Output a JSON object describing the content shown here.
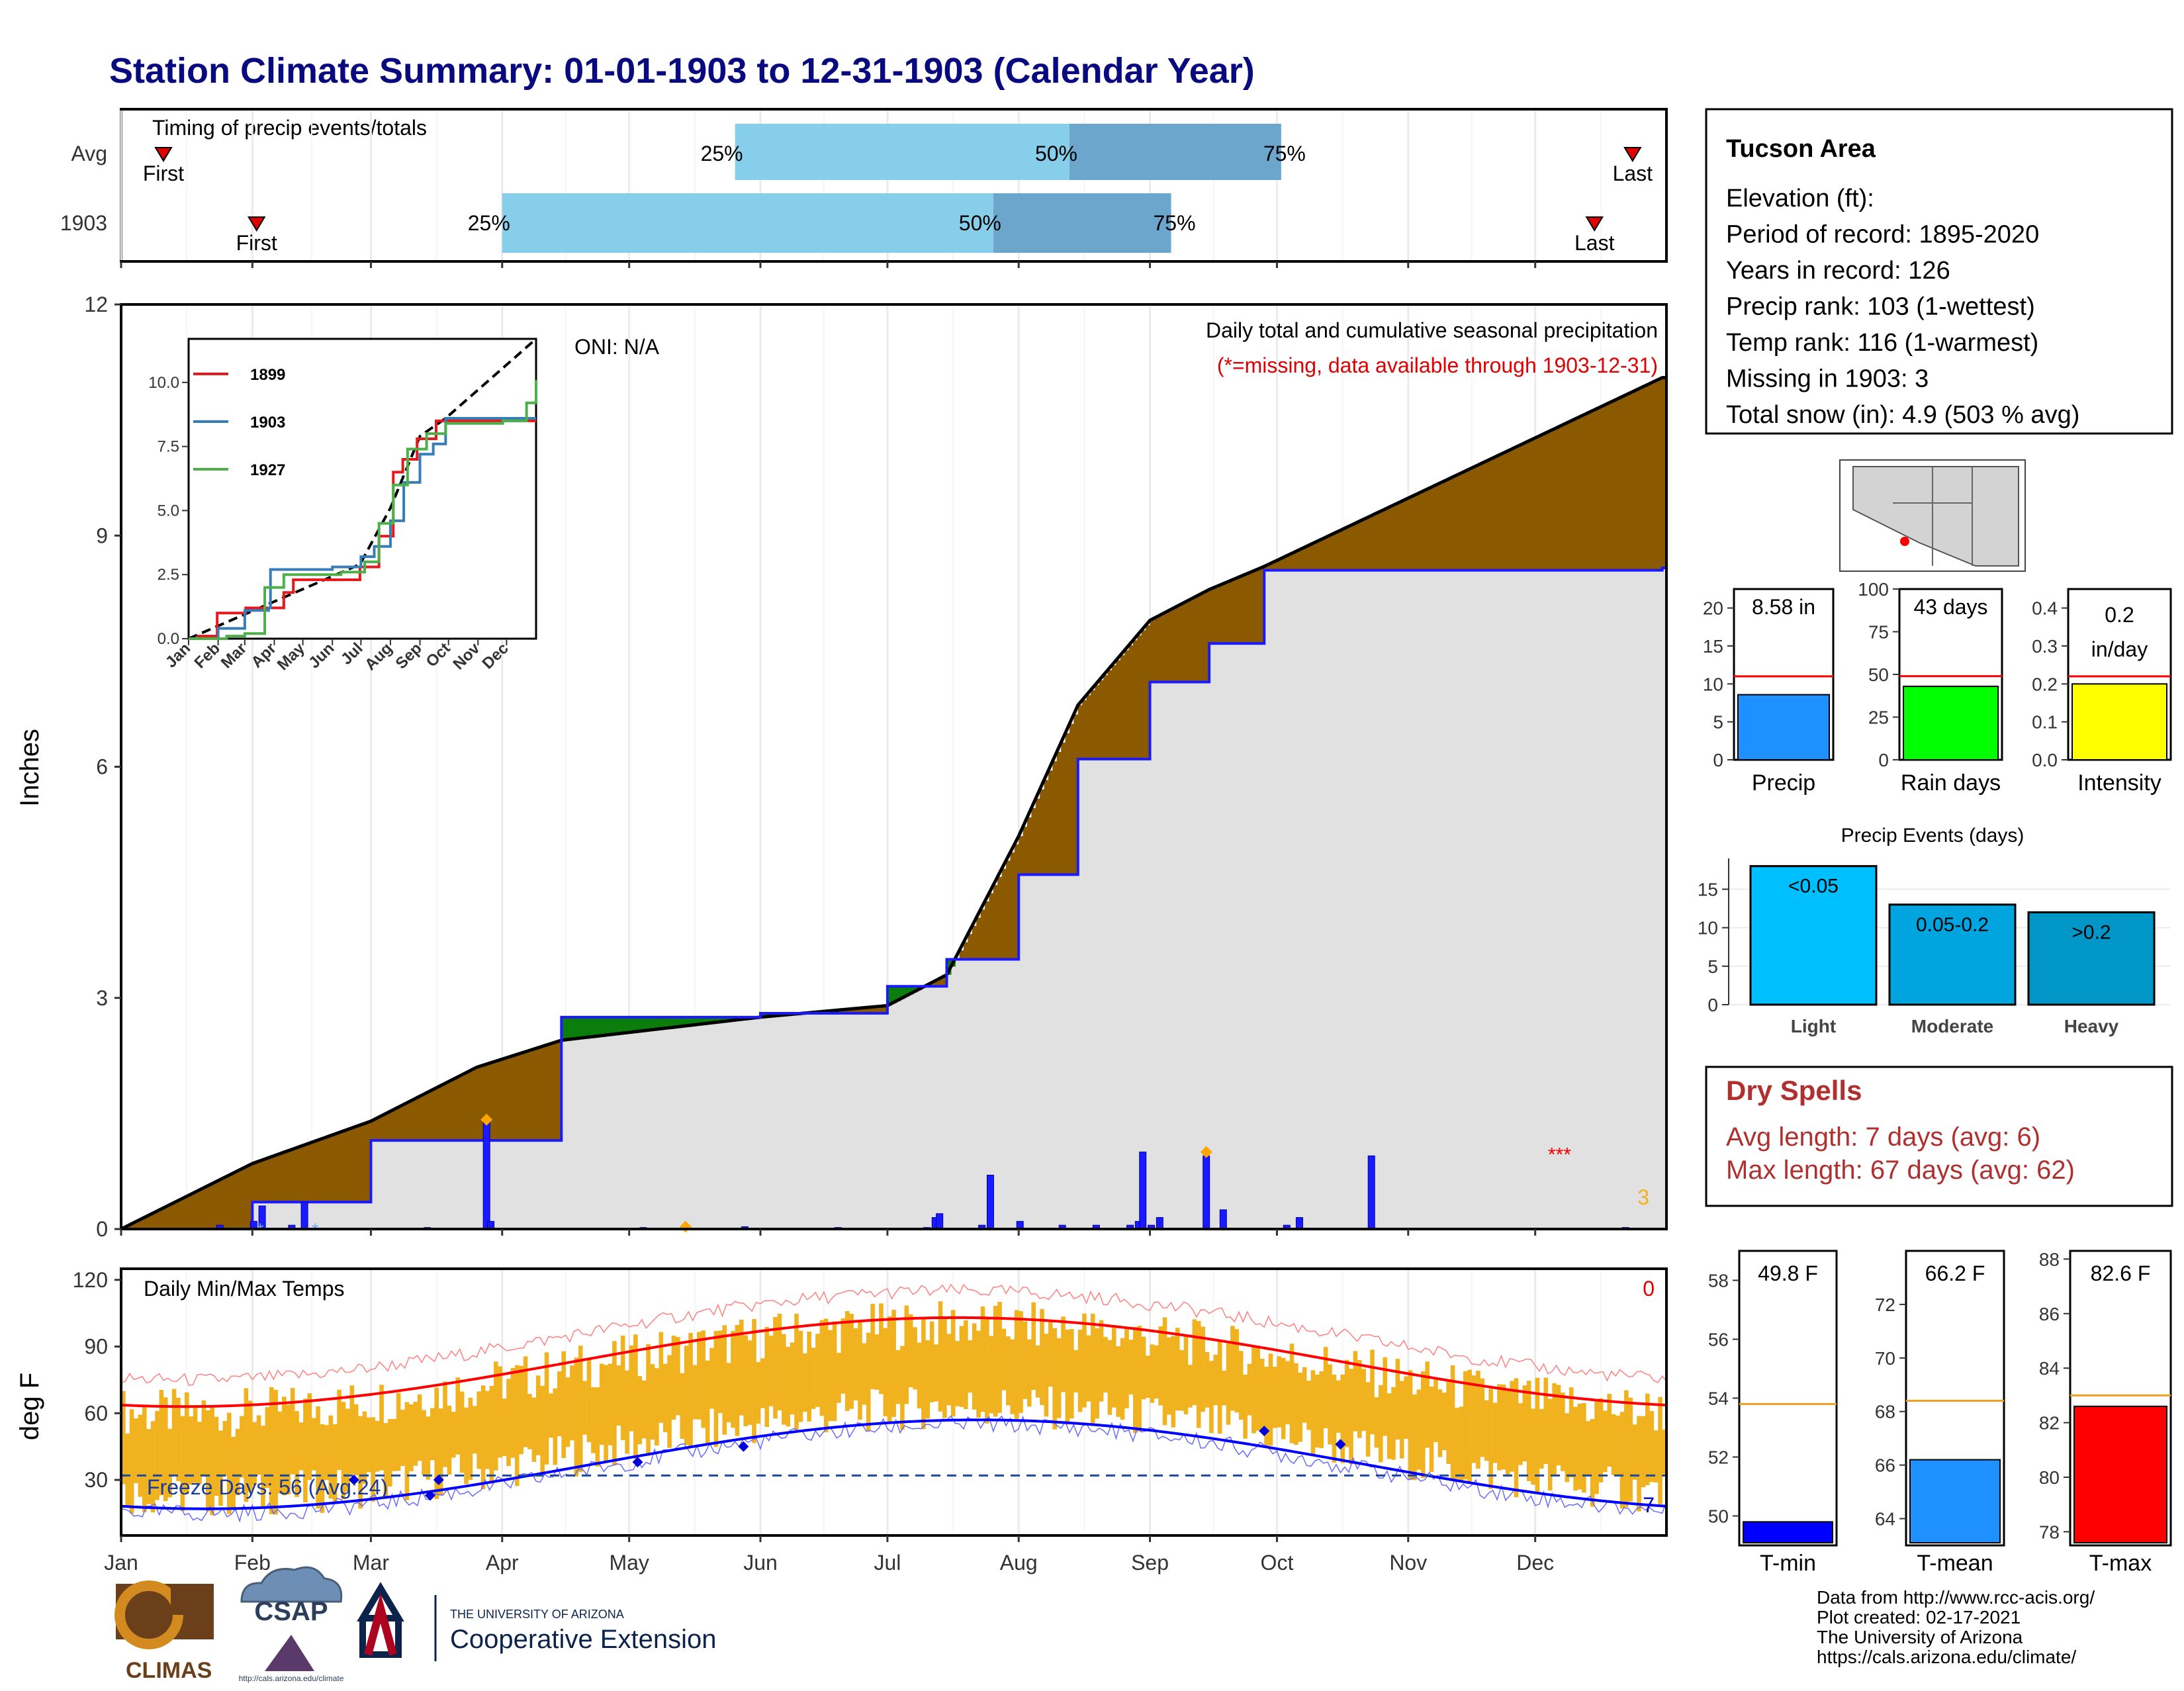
{
  "page_title": "Station Climate Summary: 01-01-1903 to 12-31-1903 (Calendar Year)",
  "months": [
    "Jan",
    "Feb",
    "Mar",
    "Apr",
    "May",
    "Jun",
    "Jul",
    "Aug",
    "Sep",
    "Oct",
    "Nov",
    "Dec"
  ],
  "colors": {
    "title": "#0a0a80",
    "brown": "#8b5a00",
    "green": "#0a7d0a",
    "blue": "#1a1aff",
    "gray_fill": "#e1e1e1",
    "orange": "#f0b21f",
    "red": "#e00000",
    "light_blue": "#87ceeb",
    "mid_blue": "#6ca6cd",
    "dry_red": "#b03030"
  },
  "timing_panel": {
    "title": "Timing of precip events/totals",
    "first_label": "First",
    "last_label": "Last",
    "rows": [
      {
        "label": "Avg",
        "first_doy": 10,
        "p25_doy": 145,
        "p50_doy": 224,
        "p75_doy": 274,
        "last_doy": 357,
        "p25_label": "25%",
        "p50_label": "50%",
        "p75_label": "75%"
      },
      {
        "label": "1903",
        "first_doy": 32,
        "p25_doy": 90,
        "p50_doy": 206,
        "p75_doy": 248,
        "last_doy": 348,
        "p25_label": "25%",
        "p50_label": "50%",
        "p75_label": "75%"
      }
    ]
  },
  "precip_panel": {
    "ylabel": "Inches",
    "header_line1": "Daily total and cumulative seasonal precipitation",
    "header_line2": "(*=missing, data available through 1903-12-31)",
    "oni": "ONI: N/A",
    "missing_count": "3",
    "y_ticks": [
      "0",
      "3",
      "6",
      "9",
      "12"
    ]
  },
  "inset_chart": {
    "y_ticks": [
      "0.0",
      "2.5",
      "5.0",
      "7.5",
      "10.0"
    ],
    "months": [
      "Jan",
      "Feb",
      "Mar",
      "Apr",
      "May",
      "Jun",
      "Jul",
      "Aug",
      "Sep",
      "Oct",
      "Nov",
      "Dec"
    ],
    "legend": [
      {
        "label": "1899",
        "color": "#e41a1c"
      },
      {
        "label": "1903",
        "color": "#377eb8"
      },
      {
        "label": "1927",
        "color": "#4daf4a"
      }
    ]
  },
  "temp_panel": {
    "title": "Daily Min/Max Temps",
    "ylabel": "deg F",
    "y_ticks": [
      "30",
      "60",
      "90",
      "120"
    ],
    "freeze_text": "Freeze Days: 56 (Avg:24)",
    "top_count": "0",
    "bottom_count": "7"
  },
  "station_info": {
    "name": "Tucson Area",
    "lines": [
      "Elevation (ft):",
      "Period of record: 1895-2020",
      "Years in record: 126",
      "Precip rank: 103 (1-wettest)",
      "Temp rank: 116 (1-warmest)",
      "Missing in 1903: 3",
      "Total snow (in): 4.9 (503 % avg)"
    ]
  },
  "mini_bars": [
    {
      "label": "Precip",
      "value_label": "8.58 in",
      "value": 8.58,
      "avg": 11.0,
      "ymax": 22.5,
      "ticks": [
        "0",
        "5",
        "10",
        "15",
        "20"
      ],
      "color": "#1e90ff"
    },
    {
      "label": "Rain days",
      "value_label": "43 days",
      "value": 43,
      "avg": 49,
      "ymax": 100,
      "ticks": [
        "0",
        "25",
        "50",
        "75",
        "100"
      ],
      "color": "#00ff00"
    },
    {
      "label": "Intensity",
      "value_label_1": "0.2",
      "value_label_2": "in/day",
      "value": 0.2,
      "avg": 0.22,
      "ymax": 0.45,
      "ticks": [
        "0.0",
        "0.1",
        "0.2",
        "0.3",
        "0.4"
      ],
      "color": "#ffff00"
    }
  ],
  "precip_events": {
    "title": "Precip Events (days)",
    "ticks": [
      "0",
      "5",
      "10",
      "15"
    ],
    "bars": [
      {
        "cat": "Light",
        "label": "<0.05",
        "value": 18,
        "color": "#00bfff"
      },
      {
        "cat": "Moderate",
        "label": "0.05-0.2",
        "value": 13,
        "color": "#00a5e0"
      },
      {
        "cat": "Heavy",
        "label": ">0.2",
        "value": 12,
        "color": "#0096c7"
      }
    ]
  },
  "dry_spells": {
    "title": "Dry Spells",
    "avg_line": "Avg length: 7 days (avg: 6)",
    "max_line": "Max length: 67 days (avg: 62)"
  },
  "temp_bars": [
    {
      "label": "T-min",
      "value_label": "49.8 F",
      "value": 49.8,
      "avg": 53.8,
      "ymin": 49,
      "ymax": 59,
      "ticks": [
        "50",
        "52",
        "54",
        "56",
        "58"
      ],
      "color": "#0000ff"
    },
    {
      "label": "T-mean",
      "value_label": "66.2 F",
      "value": 66.2,
      "avg": 68.4,
      "ymin": 63,
      "ymax": 74,
      "ticks": [
        "64",
        "66",
        "68",
        "70",
        "72"
      ],
      "color": "#1e90ff"
    },
    {
      "label": "T-max",
      "value_label": "82.6 F",
      "value": 82.6,
      "avg": 83.0,
      "ymin": 77.5,
      "ymax": 88.3,
      "ticks": [
        "78",
        "80",
        "82",
        "84",
        "86",
        "88"
      ],
      "color": "#ff0000"
    }
  ],
  "footer": {
    "lines": [
      "Data from http://www.rcc-acis.org/",
      "Plot created: 02-17-2021",
      "The University of Arizona",
      "https://cals.arizona.edu/climate/"
    ],
    "climas": "CLIMAS",
    "csap": "CSAP",
    "csap_url": "http://cals.arizona.edu/climate",
    "ua_small": "THE UNIVERSITY OF ARIZONA",
    "ua_big": "Cooperative Extension"
  },
  "chart_data": [
    {
      "type": "line",
      "title": "Daily total and cumulative seasonal precipitation",
      "ylabel": "Inches",
      "ylim": [
        0,
        12
      ],
      "x": [
        "Jan 1",
        "Feb 1",
        "Mar 1",
        "Mar 26",
        "Apr 15",
        "Jun 1",
        "Jul 1",
        "Jul 15",
        "Aug 1",
        "Aug 15",
        "Sep 1",
        "Sep 15",
        "Sep 28",
        "Dec 31"
      ],
      "series": [
        {
          "name": "1903",
          "values": [
            0.0,
            0.35,
            1.15,
            1.15,
            2.75,
            2.8,
            3.15,
            3.5,
            4.6,
            6.1,
            7.1,
            7.6,
            8.55,
            8.58
          ]
        },
        {
          "name": "Avg",
          "values": [
            0.0,
            0.85,
            1.4,
            2.1,
            2.45,
            2.75,
            2.9,
            3.3,
            5.1,
            6.8,
            7.9,
            8.3,
            8.6,
            11.05
          ]
        }
      ]
    },
    {
      "type": "bar",
      "title": "Precip Events (days)",
      "categories": [
        "Light",
        "Moderate",
        "Heavy"
      ],
      "values": [
        18,
        13,
        12
      ]
    }
  ]
}
